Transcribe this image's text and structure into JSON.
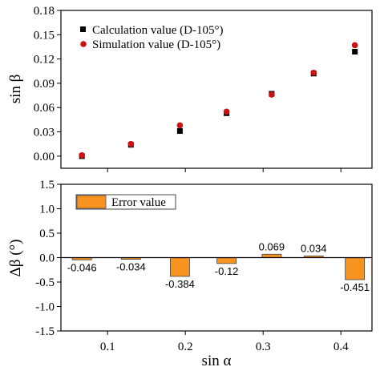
{
  "chart_data": [
    {
      "type": "scatter",
      "ylabel": "sin β",
      "xlim": [
        0.04,
        0.44
      ],
      "ylim": [
        -0.015,
        0.18
      ],
      "x_ticks": [
        0.1,
        0.2,
        0.3,
        0.4
      ],
      "y_ticks": [
        "0.00",
        "0.03",
        "0.06",
        "0.09",
        "0.12",
        "0.15",
        "0.18"
      ],
      "legend_position": "top-left",
      "series": [
        {
          "name": "Calculation value (D-105°)",
          "marker": "square",
          "color": "#000000",
          "x": [
            0.067,
            0.13,
            0.193,
            0.253,
            0.311,
            0.365,
            0.418
          ],
          "y": [
            0.0,
            0.014,
            0.031,
            0.053,
            0.077,
            0.102,
            0.129
          ]
        },
        {
          "name": "Simulation value (D-105°)",
          "marker": "circle",
          "color": "#cc1111",
          "x": [
            0.067,
            0.13,
            0.193,
            0.253,
            0.311,
            0.365,
            0.418
          ],
          "y": [
            0.001,
            0.015,
            0.038,
            0.055,
            0.076,
            0.103,
            0.137
          ]
        }
      ]
    },
    {
      "type": "bar",
      "xlabel": "sin α",
      "ylabel": "Δβ (°)",
      "xlim": [
        0.04,
        0.44
      ],
      "ylim": [
        -1.5,
        1.5
      ],
      "x_ticks": [
        "0.1",
        "0.2",
        "0.3",
        "0.4"
      ],
      "y_ticks": [
        "-1.5",
        "-1.0",
        "-0.5",
        "0.0",
        "0.5",
        "1.0",
        "1.5"
      ],
      "legend_position": "top-left",
      "series": [
        {
          "name": "Error value",
          "color": "#f7931e",
          "x": [
            0.067,
            0.13,
            0.193,
            0.253,
            0.311,
            0.365,
            0.418
          ],
          "values": [
            -0.046,
            -0.034,
            -0.384,
            -0.12,
            0.069,
            0.034,
            -0.451
          ],
          "labels": [
            "-0.046",
            "-0.034",
            "-0.384",
            "-0.12",
            "0.069",
            "0.034",
            "-0.451"
          ]
        }
      ]
    }
  ]
}
